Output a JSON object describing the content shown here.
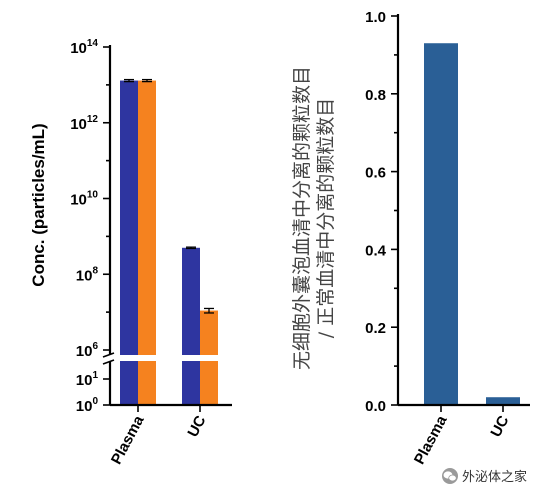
{
  "chart_data": [
    {
      "type": "bar",
      "categories": [
        "Plasma",
        "UC"
      ],
      "ylabel": "Conc. (particles/mL)",
      "yscale": "log (broken axis)",
      "yticks": [
        {
          "base": "10",
          "exp": "14",
          "value": 100000000000000.0
        },
        {
          "base": "10",
          "exp": "12",
          "value": 1000000000000.0
        },
        {
          "base": "10",
          "exp": "10",
          "value": 10000000000.0
        },
        {
          "base": "10",
          "exp": "8",
          "value": 100000000.0
        },
        {
          "base": "10",
          "exp": "6",
          "value": 1000000.0
        },
        {
          "base": "10",
          "exp": "1",
          "value": 10
        },
        {
          "base": "10",
          "exp": "0",
          "value": 1
        }
      ],
      "series": [
        {
          "color": "#2e35a0",
          "values": [
            13000000000000.0,
            500000000.0
          ],
          "errors": [
            800000000000.0,
            20000000.0
          ]
        },
        {
          "color": "#f5821f",
          "values": [
            13000000000000.0,
            11000000.0
          ],
          "errors": [
            800000000000.0,
            1500000.0
          ]
        }
      ]
    },
    {
      "type": "bar",
      "categories": [
        "Plasma",
        "UC"
      ],
      "ylabel": "无细胞外囊泡血清中分离的颗粒数目 / 正常血清中分离的颗粒数目",
      "ylabel_line1": "无细胞外囊泡血清中分离的颗粒数目",
      "ylabel_line2": "/ 正常血清中分离的颗粒数目",
      "ylim": [
        0,
        1.0
      ],
      "yticks": [
        "0.0",
        "0.2",
        "0.4",
        "0.6",
        "0.8",
        "1.0"
      ],
      "series": [
        {
          "color": "#2a5f96",
          "values": [
            0.93,
            0.02
          ]
        }
      ]
    }
  ],
  "watermark": {
    "text": "外泌体之家",
    "icon": "wechat-icon"
  }
}
